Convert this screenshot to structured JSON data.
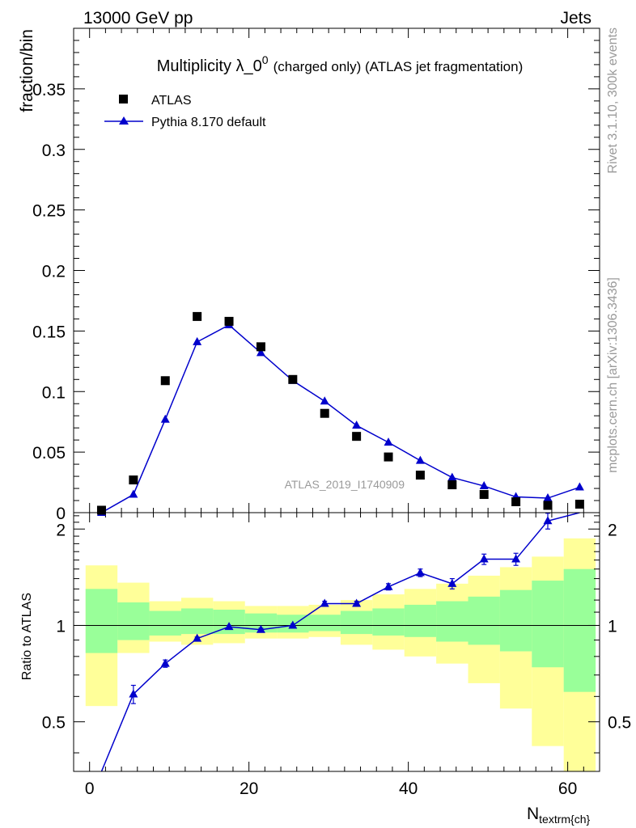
{
  "header": {
    "left": "13000 GeV pp",
    "right": "Jets"
  },
  "side": {
    "top": "Rivet 3.1.10,  300k events",
    "bottom": "mcplots.cern.ch [arXiv:1306.3436]"
  },
  "chart_data": {
    "type": "scatter",
    "title_main": "Multiplicity λ_0",
    "title_sup": "0",
    "title_rest": "(charged only) (ATLAS jet fragmentation)",
    "ylabel": "fraction/bin",
    "xlabel_main": "N",
    "xlabel_sub": "textrm{ch}",
    "watermark": "ATLAS_2019_I1740909",
    "xlim": [
      -2,
      64
    ],
    "ylim": [
      0,
      0.4
    ],
    "xticks": [
      "0",
      "20",
      "40",
      "60"
    ],
    "yticks": [
      "0",
      "0.05",
      "0.1",
      "0.15",
      "0.2",
      "0.25",
      "0.3",
      "0.35"
    ],
    "x": [
      1.5,
      5.5,
      9.5,
      13.5,
      17.5,
      21.5,
      25.5,
      29.5,
      33.5,
      37.5,
      41.5,
      45.5,
      49.5,
      53.5,
      57.5,
      61.5
    ],
    "series": [
      {
        "name": "ATLAS",
        "style": "marker",
        "color": "#000000",
        "values": [
          0.002,
          0.027,
          0.109,
          0.162,
          0.158,
          0.137,
          0.11,
          0.082,
          0.063,
          0.046,
          0.031,
          0.023,
          0.015,
          0.009,
          0.006,
          0.007
        ]
      },
      {
        "name": "Pythia 8.170 default",
        "style": "line-marker",
        "color": "#0000cc",
        "values": [
          0.0,
          0.015,
          0.077,
          0.141,
          0.155,
          0.132,
          0.109,
          0.092,
          0.072,
          0.058,
          0.043,
          0.029,
          0.022,
          0.013,
          0.012,
          0.021
        ]
      }
    ],
    "ratio": {
      "ylabel": "Ratio to ATLAS",
      "ylim": [
        0.35,
        2.25
      ],
      "yticks": [
        "0.5",
        "1",
        "2"
      ],
      "bin_edges": [
        -0.5,
        3.5,
        7.5,
        11.5,
        15.5,
        19.5,
        23.5,
        27.5,
        31.5,
        35.5,
        39.5,
        43.5,
        47.5,
        51.5,
        55.5,
        59.5,
        63.5
      ],
      "band_yellow": [
        [
          0.56,
          1.54
        ],
        [
          0.82,
          1.36
        ],
        [
          0.89,
          1.19
        ],
        [
          0.87,
          1.22
        ],
        [
          0.88,
          1.19
        ],
        [
          0.91,
          1.15
        ],
        [
          0.91,
          1.15
        ],
        [
          0.92,
          1.16
        ],
        [
          0.87,
          1.2
        ],
        [
          0.84,
          1.25
        ],
        [
          0.8,
          1.3
        ],
        [
          0.76,
          1.35
        ],
        [
          0.66,
          1.43
        ],
        [
          0.55,
          1.52
        ],
        [
          0.42,
          1.64
        ],
        [
          0.34,
          1.87
        ]
      ],
      "band_green": [
        [
          0.82,
          1.3
        ],
        [
          0.9,
          1.18
        ],
        [
          0.93,
          1.11
        ],
        [
          0.94,
          1.13
        ],
        [
          0.94,
          1.12
        ],
        [
          0.95,
          1.09
        ],
        [
          0.95,
          1.08
        ],
        [
          0.96,
          1.08
        ],
        [
          0.94,
          1.11
        ],
        [
          0.93,
          1.13
        ],
        [
          0.92,
          1.16
        ],
        [
          0.89,
          1.19
        ],
        [
          0.87,
          1.23
        ],
        [
          0.83,
          1.29
        ],
        [
          0.74,
          1.38
        ],
        [
          0.62,
          1.5
        ]
      ],
      "pythia": [
        0.2,
        0.61,
        0.76,
        0.91,
        0.99,
        0.97,
        1.0,
        1.17,
        1.17,
        1.32,
        1.46,
        1.35,
        1.61,
        1.61,
        2.12,
        2.9
      ],
      "pythia_err": [
        0.02,
        0.04,
        0.02,
        0.01,
        0.01,
        0.01,
        0.01,
        0.02,
        0.02,
        0.03,
        0.04,
        0.05,
        0.06,
        0.07,
        0.12,
        0.2
      ]
    }
  }
}
